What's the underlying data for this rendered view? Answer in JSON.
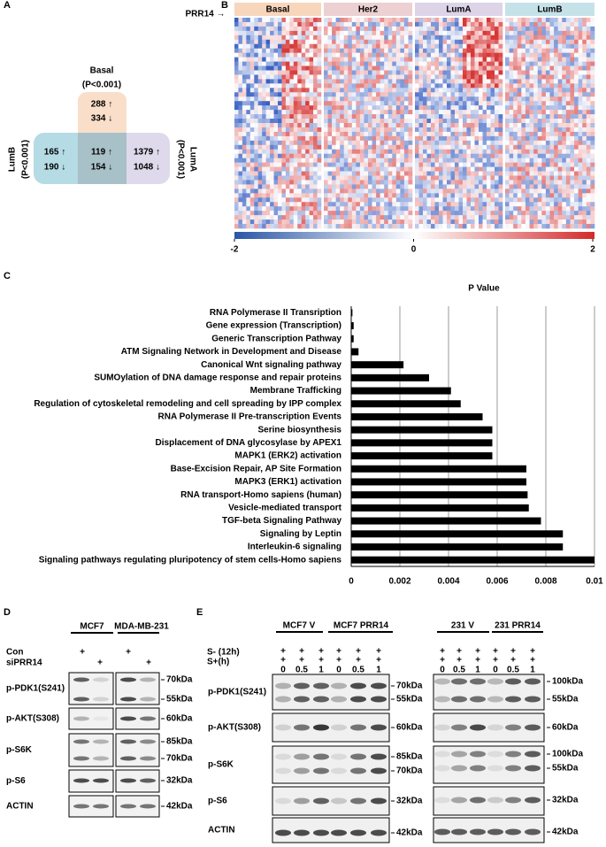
{
  "panel_labels": [
    "A",
    "B",
    "C",
    "D",
    "E"
  ],
  "venn": {
    "basal": {
      "name": "Basal",
      "p": "(P<0.001)",
      "up": "288 ↑",
      "down": "334 ↓"
    },
    "lumb": {
      "name": "LumB",
      "p": "(P<0.001)",
      "up": "165 ↑",
      "down": "190 ↓"
    },
    "luma": {
      "name": "LumA",
      "p": "(P<0.001)",
      "up": "1379 ↑",
      "down": "1048 ↓"
    },
    "center": {
      "up": "119 ↑",
      "down": "154 ↓"
    }
  },
  "heatmap": {
    "groups": [
      "Basal",
      "Her2",
      "LumA",
      "LumB"
    ],
    "marker": "PRR14 →",
    "colorbar_ticks": [
      -2,
      0,
      2
    ]
  },
  "chart_data": {
    "type": "barh",
    "title": "P Value",
    "color": "#000000",
    "grid": true,
    "categories": [
      "RNA Polymerase II Transription",
      "Gene expression (Transcription)",
      "Generic Transcription Pathway",
      "ATM Signaling Network in Development and Disease",
      "Canonical Wnt signaling pathway",
      "SUMOylation of DNA damage response and repair proteins",
      "Membrane Trafficking",
      "Regulation of cytoskeletal remodeling and cell spreading by IPP complex",
      "RNA Polymerase II Pre-transcription Events",
      "Serine biosynthesis",
      "Displacement of DNA glycosylase by APEX1",
      "MAPK1 (ERK2) activation",
      "Base-Excision Repair, AP Site Formation",
      "MAPK3 (ERK1) activation",
      "RNA transport-Homo sapiens (human)",
      "Vesicle-mediated transport",
      "TGF-beta Signaling Pathway",
      "Signaling by Leptin",
      "Interleukin-6 signaling",
      "Signaling pathways regulating pluripotency of stem cells-Homo sapiens"
    ],
    "values": [
      5e-05,
      0.0001,
      0.0001,
      0.0003,
      0.00215,
      0.0032,
      0.0041,
      0.0045,
      0.0054,
      0.0058,
      0.0058,
      0.0058,
      0.0072,
      0.0072,
      0.00725,
      0.0073,
      0.0078,
      0.0087,
      0.0087,
      0.01
    ],
    "xlim": [
      0,
      0.01
    ],
    "xticks": [
      0,
      0.002,
      0.004,
      0.006,
      0.008,
      0.01
    ]
  },
  "blot_d": {
    "cell_lines": [
      "MCF7",
      "MDA-MB-231"
    ],
    "conditions": [
      "Con",
      "siPRR14"
    ],
    "plus": "+",
    "rows": [
      {
        "label": "p-PDK1(S241)",
        "sizes": [
          "70kDa",
          "55kDa"
        ]
      },
      {
        "label": "p-AKT(S308)",
        "sizes": [
          "60kDa"
        ]
      },
      {
        "label": "p-S6K",
        "sizes": [
          "85kDa",
          "70kDa"
        ]
      },
      {
        "label": "p-S6",
        "sizes": [
          "32kDa"
        ]
      },
      {
        "label": "ACTIN",
        "sizes": [
          "42kDa"
        ]
      }
    ]
  },
  "blot_e": {
    "groups": [
      "MCF7 V",
      "MCF7 PRR14",
      "231 V",
      "231 PRR14"
    ],
    "conditions": [
      "S- (12h)",
      "S+(h)"
    ],
    "plus": "+",
    "times": [
      "0",
      "0.5",
      "1"
    ],
    "rows": [
      {
        "label": "p-PDK1(S241)",
        "sizes_left": [
          "70kDa",
          "55kDa"
        ],
        "sizes_right": [
          "100kDa",
          "55kDa"
        ]
      },
      {
        "label": "p-AKT(S308)",
        "sizes_left": [
          "60kDa"
        ],
        "sizes_right": [
          "60kDa"
        ]
      },
      {
        "label": "p-S6K",
        "sizes_left": [
          "85kDa",
          "70kDa"
        ],
        "sizes_right": [
          "100kDa",
          "55kDa"
        ]
      },
      {
        "label": "p-S6",
        "sizes_left": [
          "32kDa"
        ],
        "sizes_right": [
          "32kDa"
        ]
      },
      {
        "label": "ACTIN",
        "sizes_left": [
          "42kDa"
        ],
        "sizes_right": [
          "42kDa"
        ]
      }
    ]
  }
}
